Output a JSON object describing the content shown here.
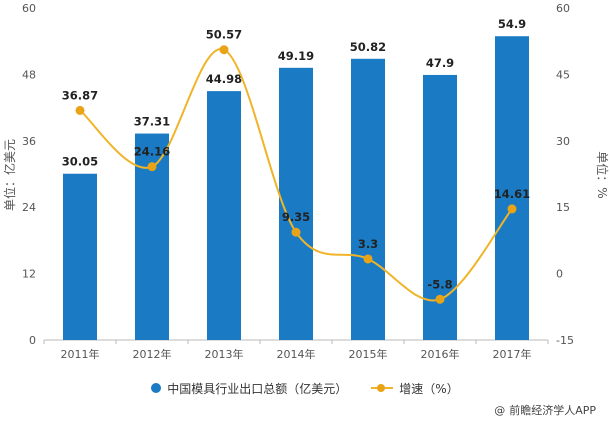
{
  "chart_data": {
    "type": "bar",
    "categories": [
      "2011年",
      "2012年",
      "2013年",
      "2014年",
      "2015年",
      "2016年",
      "2017年"
    ],
    "series": [
      {
        "name": "中国模具行业出口总额（亿美元）",
        "type": "bar",
        "axis": "left",
        "values": [
          30.05,
          37.31,
          44.98,
          49.19,
          50.82,
          47.9,
          54.9
        ],
        "labels": [
          "30.05",
          "37.31",
          "44.98",
          "49.19",
          "50.82",
          "47.9",
          "54.9"
        ],
        "color": "#1a7bc4"
      },
      {
        "name": "增速（%）",
        "type": "line",
        "axis": "right",
        "values": [
          36.87,
          24.16,
          50.57,
          9.35,
          3.3,
          -5.8,
          14.61
        ],
        "labels": [
          "36.87",
          "24.16",
          "50.57",
          "9.35",
          "3.3",
          "-5.8",
          "14.61"
        ],
        "color": "#f0b429"
      }
    ],
    "ylabel": "单位：亿美元",
    "y2label": "单位：%",
    "ylim": [
      0,
      60
    ],
    "y2lim": [
      -15,
      60
    ],
    "yticks": [
      "0",
      "12",
      "24",
      "36",
      "48",
      "60"
    ],
    "y2ticks": [
      "-15",
      "0",
      "15",
      "30",
      "45",
      "60"
    ],
    "grid": false,
    "legend_position": "bottom"
  },
  "legend": {
    "bar_label": "中国模具行业出口总额（亿美元）",
    "line_label": "增速（%）"
  },
  "source": {
    "icon": "at-icon",
    "text": "前瞻经济学人APP"
  }
}
